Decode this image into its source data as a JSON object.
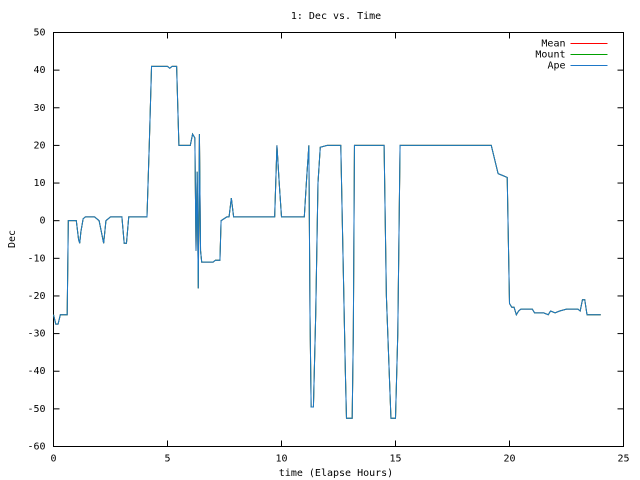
{
  "chart_data": {
    "type": "line",
    "title": "1: Dec vs. Time",
    "x_label": "time (Elapse Hours)",
    "y_label": "Dec",
    "x": [
      0,
      0.1,
      0.2,
      0.3,
      0.6,
      0.65,
      1,
      1.1,
      1.15,
      1.2,
      1.3,
      1.4,
      1.8,
      2,
      2.2,
      2.3,
      2.5,
      3,
      3.1,
      3.2,
      3.3,
      4.1,
      4.2,
      4.3,
      5,
      5.1,
      5.2,
      5.4,
      5.5,
      6,
      6.1,
      6.2,
      6.25,
      6.3,
      6.35,
      6.4,
      6.45,
      6.5,
      7,
      7.1,
      7.3,
      7.35,
      7.6,
      7.7,
      7.8,
      7.9,
      9.7,
      9.8,
      9.9,
      10,
      11,
      11.1,
      11.2,
      11.25,
      11.3,
      11.4,
      11.5,
      11.6,
      11.7,
      12,
      12.6,
      12.7,
      12.8,
      12.85,
      13.1,
      13.15,
      13.2,
      14.5,
      14.6,
      14.8,
      15,
      15.1,
      15.2,
      19.2,
      19.4,
      19.5,
      19.7,
      19.9,
      20,
      20.1,
      20.2,
      20.3,
      20.4,
      20.5,
      21,
      21.1,
      21.5,
      21.7,
      21.8,
      22,
      22.2,
      22.5,
      23,
      23.1,
      23.2,
      23.3,
      23.4,
      24
    ],
    "series": [
      {
        "name": "Mean",
        "color": "#ff0000",
        "values": [
          -25,
          -27.5,
          -27.5,
          -25,
          -25,
          0,
          0,
          -5,
          -6,
          -3,
          0.5,
          1,
          1,
          0,
          -6,
          0,
          1,
          1,
          -6,
          -6,
          1,
          1,
          20,
          41,
          41,
          40.5,
          41,
          41,
          20,
          20,
          23,
          22,
          -8,
          13,
          -18,
          23,
          -8,
          -11,
          -11,
          -10.5,
          -10.5,
          0,
          1,
          1,
          6,
          1,
          1,
          20,
          10,
          1,
          1,
          11,
          20,
          -25,
          -49.5,
          -49.5,
          -25,
          10,
          19.5,
          20,
          20,
          -10,
          -40,
          -52.5,
          -52.5,
          -30,
          20,
          20,
          -20,
          -52.5,
          -52.5,
          -30,
          20,
          20,
          15,
          12.5,
          12,
          11.5,
          -22,
          -23,
          -23,
          -25,
          -24,
          -23.5,
          -23.5,
          -24.5,
          -24.5,
          -25,
          -24,
          -24.5,
          -24,
          -23.5,
          -23.5,
          -24,
          -21,
          -21,
          -25,
          -25
        ]
      },
      {
        "name": "Mount",
        "color": "#00a000",
        "values": [
          -25,
          -27.5,
          -27.5,
          -25,
          -25,
          0,
          0,
          -5,
          -6,
          -3,
          0.5,
          1,
          1,
          0,
          -6,
          0,
          1,
          1,
          -6,
          -6,
          1,
          1,
          20,
          41,
          41,
          40.5,
          41,
          41,
          20,
          20,
          23,
          22,
          -8,
          13,
          -18,
          23,
          -8,
          -11,
          -11,
          -10.5,
          -10.5,
          0,
          1,
          1,
          6,
          1,
          1,
          20,
          10,
          1,
          1,
          11,
          20,
          -25,
          -49.5,
          -49.5,
          -25,
          10,
          19.5,
          20,
          20,
          -10,
          -40,
          -52.5,
          -52.5,
          -30,
          20,
          20,
          -20,
          -52.5,
          -52.5,
          -30,
          20,
          20,
          15,
          12.5,
          12,
          11.5,
          -22,
          -23,
          -23,
          -25,
          -24,
          -23.5,
          -23.5,
          -24.5,
          -24.5,
          -25,
          -24,
          -24.5,
          -24,
          -23.5,
          -23.5,
          -24,
          -21,
          -21,
          -25,
          -25
        ]
      },
      {
        "name": "Ape",
        "color": "#1e78c8",
        "values": [
          -25,
          -27.5,
          -27.5,
          -25,
          -25,
          0,
          0,
          -5,
          -6,
          -3,
          0.5,
          1,
          1,
          0,
          -6,
          0,
          1,
          1,
          -6,
          -6,
          1,
          1,
          20,
          41,
          41,
          40.5,
          41,
          41,
          20,
          20,
          23,
          22,
          -8,
          13,
          -18,
          23,
          -8,
          -11,
          -11,
          -10.5,
          -10.5,
          0,
          1,
          1,
          6,
          1,
          1,
          20,
          10,
          1,
          1,
          11,
          20,
          -25,
          -49.5,
          -49.5,
          -25,
          10,
          19.5,
          20,
          20,
          -10,
          -40,
          -52.5,
          -52.5,
          -30,
          20,
          20,
          -20,
          -52.5,
          -52.5,
          -30,
          20,
          20,
          15,
          12.5,
          12,
          11.5,
          -22,
          -23,
          -23,
          -25,
          -24,
          -23.5,
          -23.5,
          -24.5,
          -24.5,
          -25,
          -24,
          -24.5,
          -24,
          -23.5,
          -23.5,
          -24,
          -21,
          -21,
          -25,
          -25
        ]
      }
    ],
    "xlim": [
      0,
      25
    ],
    "xticks": [
      0,
      5,
      10,
      15,
      20,
      25
    ],
    "ylim": [
      -60,
      50
    ],
    "yticks": [
      -60,
      -50,
      -40,
      -30,
      -20,
      -10,
      0,
      10,
      20,
      30,
      40,
      50
    ],
    "grid": false,
    "legend": "upper right"
  }
}
